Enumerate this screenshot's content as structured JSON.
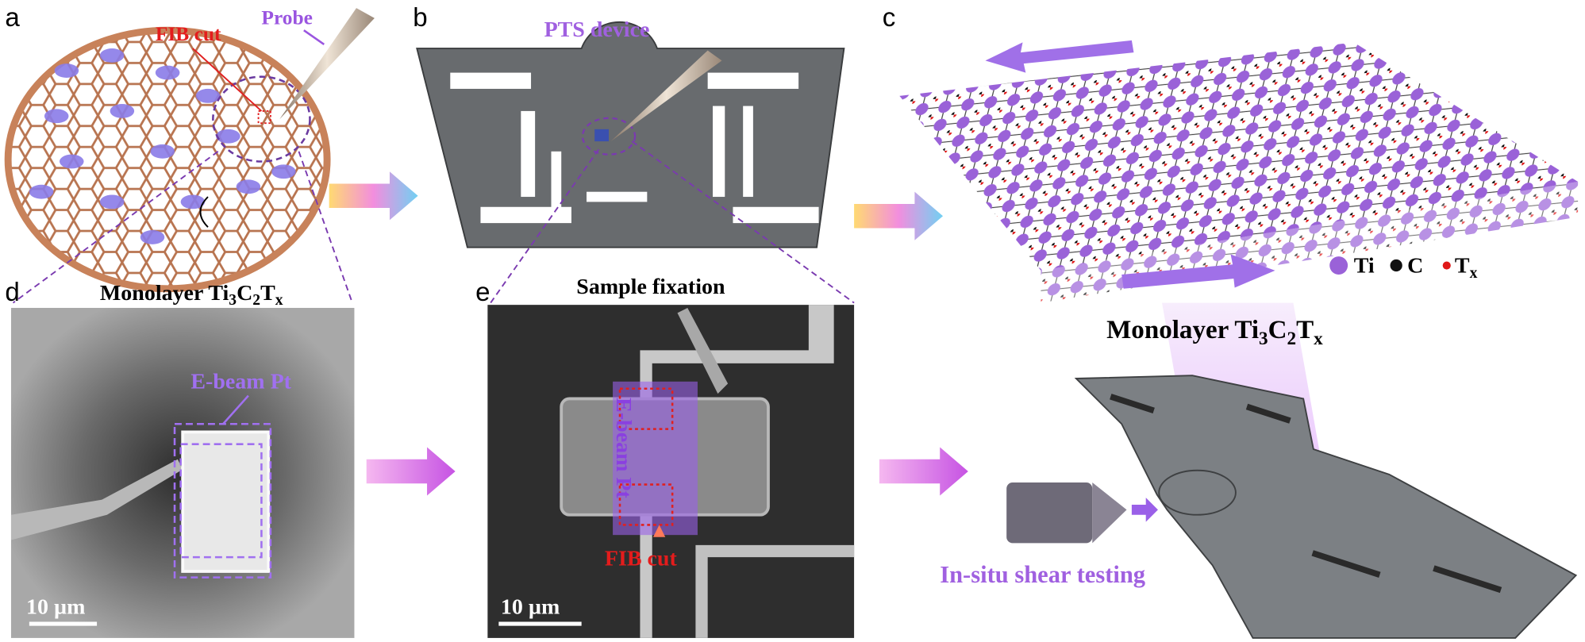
{
  "panels": {
    "a": {
      "label": "a",
      "fib_cut": "FIB cut",
      "probe": "Probe",
      "material": [
        "Monolayer Ti",
        "3",
        "C",
        "2",
        "T",
        "x"
      ]
    },
    "b": {
      "label": "b",
      "device": "PTS device"
    },
    "c": {
      "label": "c",
      "legend": [
        "Ti",
        "C",
        "T",
        "x"
      ],
      "material": [
        "Monolayer Ti",
        "3",
        "C",
        "2",
        "T",
        "x"
      ]
    },
    "d": {
      "label": "d",
      "ebeam": "E-beam Pt",
      "scale": "10 µm"
    },
    "e": {
      "label": "e",
      "title": "Sample fixation",
      "ebeam": "E-beam Pt",
      "fib_cut": "FIB cut",
      "scale": "10 µm"
    },
    "shear": {
      "text": "In-situ shear testing"
    }
  }
}
